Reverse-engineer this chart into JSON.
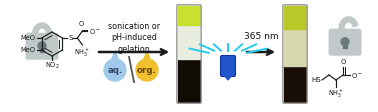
{
  "bg_color": "#ffffff",
  "arrow_color": "#1a1a1a",
  "text_sonication": "sonication or\npH-induced\ngelation",
  "text_nm": "365 nm",
  "text_aq": "aq.",
  "text_org": "org.",
  "lock_color": "#c0c8c8",
  "lock_dark": "#6a7a7a",
  "drop_aq_color": "#a0c8e8",
  "drop_org_color": "#f0c030",
  "uv_lamp_color": "#2255cc",
  "uv_rays_color": "#22ccee",
  "tube1_top": "#c8e030",
  "tube1_mid": "#e8ede0",
  "tube1_bot": "#100c04",
  "tube2_top": "#b8c828",
  "tube2_mid": "#d8d8b0",
  "tube2_bot": "#180e06",
  "mol_color": "#1a1a1a",
  "fontsize_text": 5.8,
  "fontsize_nm": 6.5,
  "fontsize_aq": 6.2,
  "dpi": 100,
  "figw": 3.78,
  "figh": 1.12
}
